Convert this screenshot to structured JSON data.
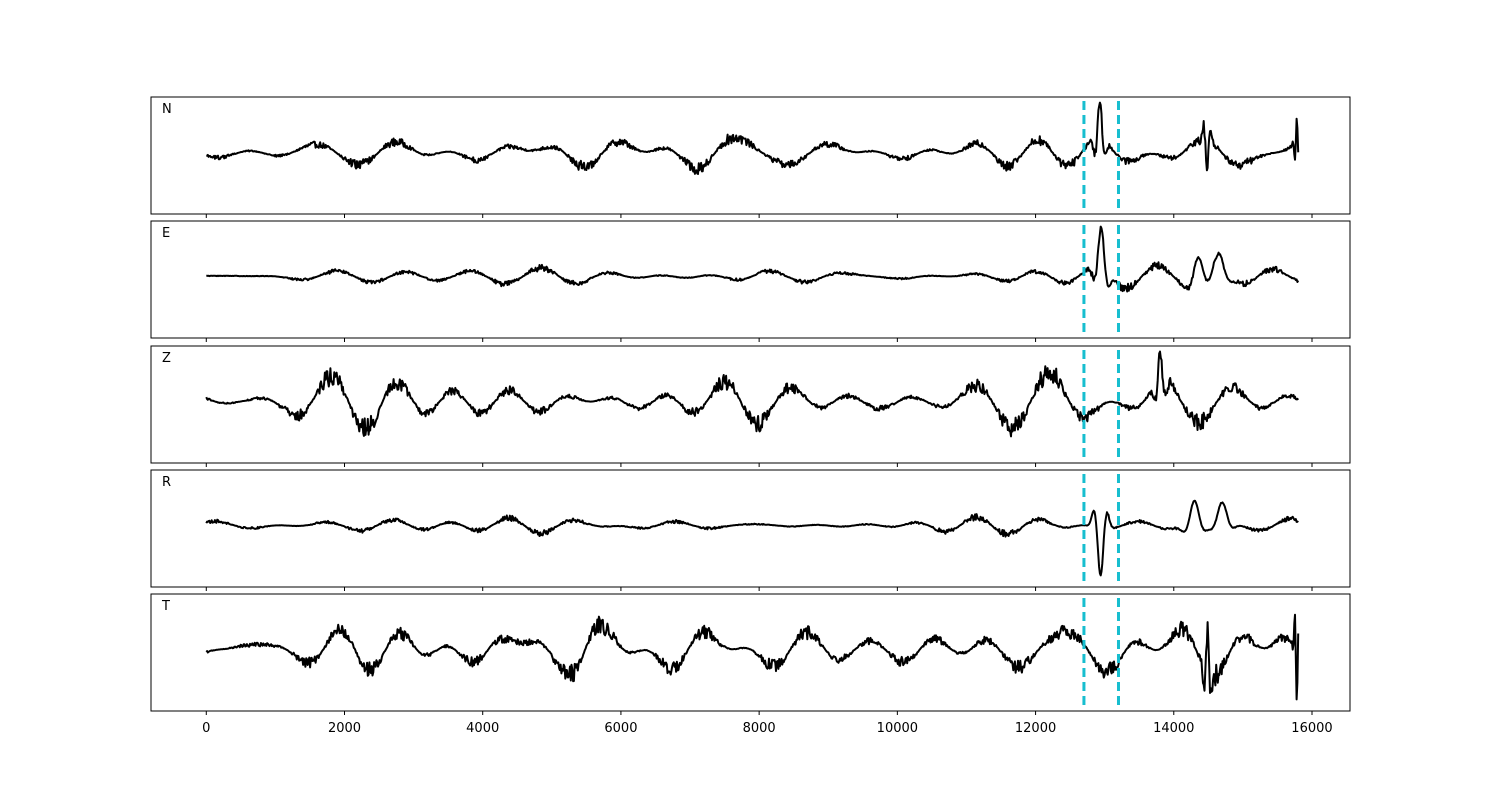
{
  "chart_data": {
    "type": "line",
    "title": "",
    "xlabel": "",
    "ylabel": "",
    "xlim": [
      -800,
      16550
    ],
    "x_ticks": [
      0,
      2000,
      4000,
      6000,
      8000,
      10000,
      12000,
      14000,
      16000
    ],
    "x_tick_labels": [
      "0",
      "2000",
      "4000",
      "6000",
      "8000",
      "10000",
      "12000",
      "14000",
      "16000"
    ],
    "grid": false,
    "legend": "none",
    "samples": 15800,
    "markers": {
      "x": [
        12700,
        13200
      ],
      "color": "#17becf",
      "style": "dashed"
    },
    "trace_color": "#000000",
    "panels": [
      {
        "label": "N",
        "noise_amp": 0.42,
        "events": [
          {
            "x": 12930,
            "amp": 1.0,
            "width": 80,
            "freq": 1.4
          },
          {
            "x": 14480,
            "amp": -0.9,
            "width": 60,
            "freq": 1.6
          },
          {
            "x": 15780,
            "amp": 0.75,
            "width": 40,
            "freq": 2.0
          }
        ]
      },
      {
        "label": "E",
        "noise_amp": 0.22,
        "events": [
          {
            "x": 12950,
            "amp": 1.0,
            "width": 100,
            "freq": 1.2
          },
          {
            "x": 14350,
            "amp": 0.55,
            "width": 140,
            "freq": 1.1
          },
          {
            "x": 14650,
            "amp": 0.45,
            "width": 140,
            "freq": 1.0
          }
        ]
      },
      {
        "label": "Z",
        "noise_amp": 0.55,
        "events": [
          {
            "x": 13800,
            "amp": 0.65,
            "width": 80,
            "freq": 1.5
          }
        ]
      },
      {
        "label": "R",
        "noise_amp": 0.2,
        "events": [
          {
            "x": 12940,
            "amp": -1.0,
            "width": 100,
            "freq": 1.3
          },
          {
            "x": 14300,
            "amp": 0.5,
            "width": 140,
            "freq": 1.1
          },
          {
            "x": 14700,
            "amp": 0.45,
            "width": 140,
            "freq": 1.0
          }
        ]
      },
      {
        "label": "T",
        "noise_amp": 0.45,
        "events": [
          {
            "x": 14490,
            "amp": 0.85,
            "width": 60,
            "freq": 1.6
          },
          {
            "x": 15780,
            "amp": -0.95,
            "width": 40,
            "freq": 2.0
          }
        ]
      }
    ]
  }
}
